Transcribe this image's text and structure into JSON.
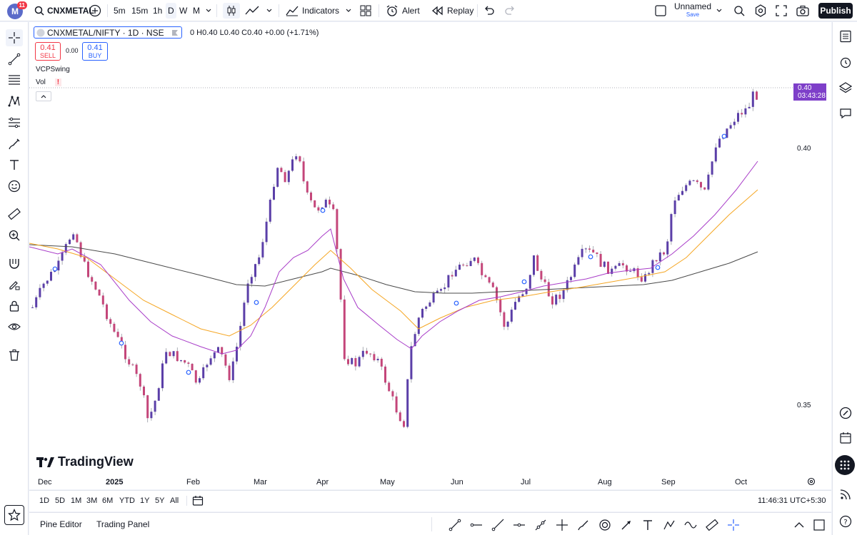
{
  "topbar": {
    "avatar_letter": "M",
    "avatar_badge": "11",
    "symbol": "CNXMETAL",
    "intervals": [
      "5m",
      "15m",
      "1h",
      "D",
      "W",
      "M"
    ],
    "selected_interval": "D",
    "indicators_label": "Indicators",
    "alert_label": "Alert",
    "replay_label": "Replay",
    "layout_name": "Unnamed",
    "layout_save": "Save",
    "publish_label": "Publish"
  },
  "legend": {
    "title": "CNXMETAL/NIFTY · 1D · NSE",
    "ohlc": "0  H0.40  L0.40  C0.40  +0.00 (+1.71%)",
    "sell_price": "0.41",
    "sell_label": "SELL",
    "spread": "0.00",
    "buy_price": "0.41",
    "buy_label": "BUY",
    "indicator1": "VCPSwing",
    "indicator2": "Vol",
    "vol_warning": "!"
  },
  "price_axis": {
    "labels": [
      {
        "value": "0.40"
      },
      {
        "value": "0.35"
      }
    ],
    "last_price": "0.40",
    "countdown": "03:43:28"
  },
  "time_axis": {
    "labels": [
      "Dec",
      "2025",
      "Feb",
      "Mar",
      "Apr",
      "May",
      "Jun",
      "Jul",
      "Aug",
      "Sep",
      "Oct"
    ]
  },
  "range_bar": {
    "ranges": [
      "1D",
      "5D",
      "1M",
      "3M",
      "6M",
      "YTD",
      "1Y",
      "5Y",
      "All"
    ],
    "clock": "11:46:31 UTC+5:30"
  },
  "bottom_bar": {
    "pine_editor": "Pine Editor",
    "trading_panel": "Trading Panel"
  },
  "branding": {
    "logo_text": "TradingView"
  },
  "colors": {
    "bull": "#5b3fa8",
    "bear": "#c4467a",
    "ma_fast": "#a83cc8",
    "ma_mid": "#f5a623",
    "ma_slow": "#4a4a4a",
    "accent": "#2962ff",
    "price_tag": "#7e3fc9"
  }
}
